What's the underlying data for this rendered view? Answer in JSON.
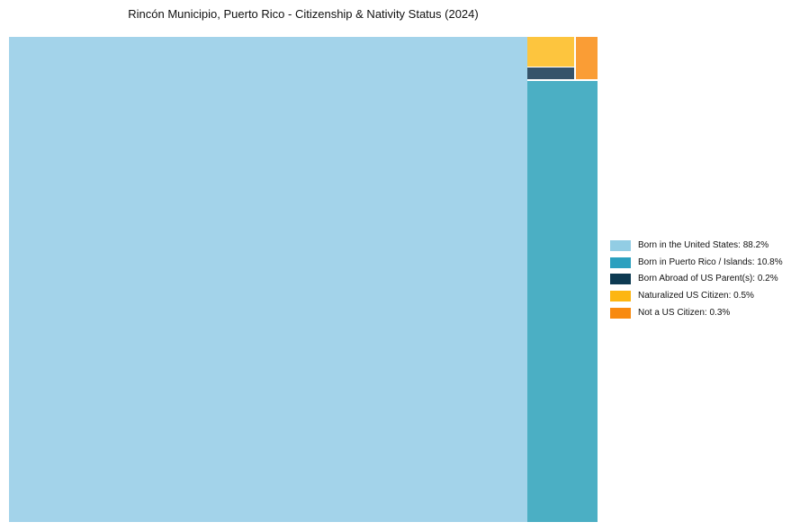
{
  "chart_data": {
    "type": "treemap",
    "title": "Rincón Municipio, Puerto Rico - Citizenship & Nativity Status (2024)",
    "legend_position": "right",
    "background_color": "#ffffff",
    "series": [
      {
        "label": "Born in the United States",
        "value_pct": 88.2,
        "legend_label": "Born in the United States: 88.2%",
        "swatch_color": "#92cde4",
        "tile_color": "#a3d3ea"
      },
      {
        "label": "Born in Puerto Rico / Islands",
        "value_pct": 10.8,
        "legend_label": "Born in Puerto Rico / Islands: 10.8%",
        "swatch_color": "#2ba0bf",
        "tile_color": "#4bafc4"
      },
      {
        "label": "Born Abroad of US Parent(s)",
        "value_pct": 0.2,
        "legend_label": "Born Abroad of US Parent(s): 0.2%",
        "swatch_color": "#0d3a52",
        "tile_color": "#35536a"
      },
      {
        "label": "Naturalized US Citizen",
        "value_pct": 0.5,
        "legend_label": "Naturalized US Citizen: 0.5%",
        "swatch_color": "#fdb612",
        "tile_color": "#fdc53e"
      },
      {
        "label": "Not a US Citizen",
        "value_pct": 0.3,
        "legend_label": "Not a US Citizen: 0.3%",
        "swatch_color": "#f88a10",
        "tile_color": "#fa9d35"
      }
    ]
  }
}
